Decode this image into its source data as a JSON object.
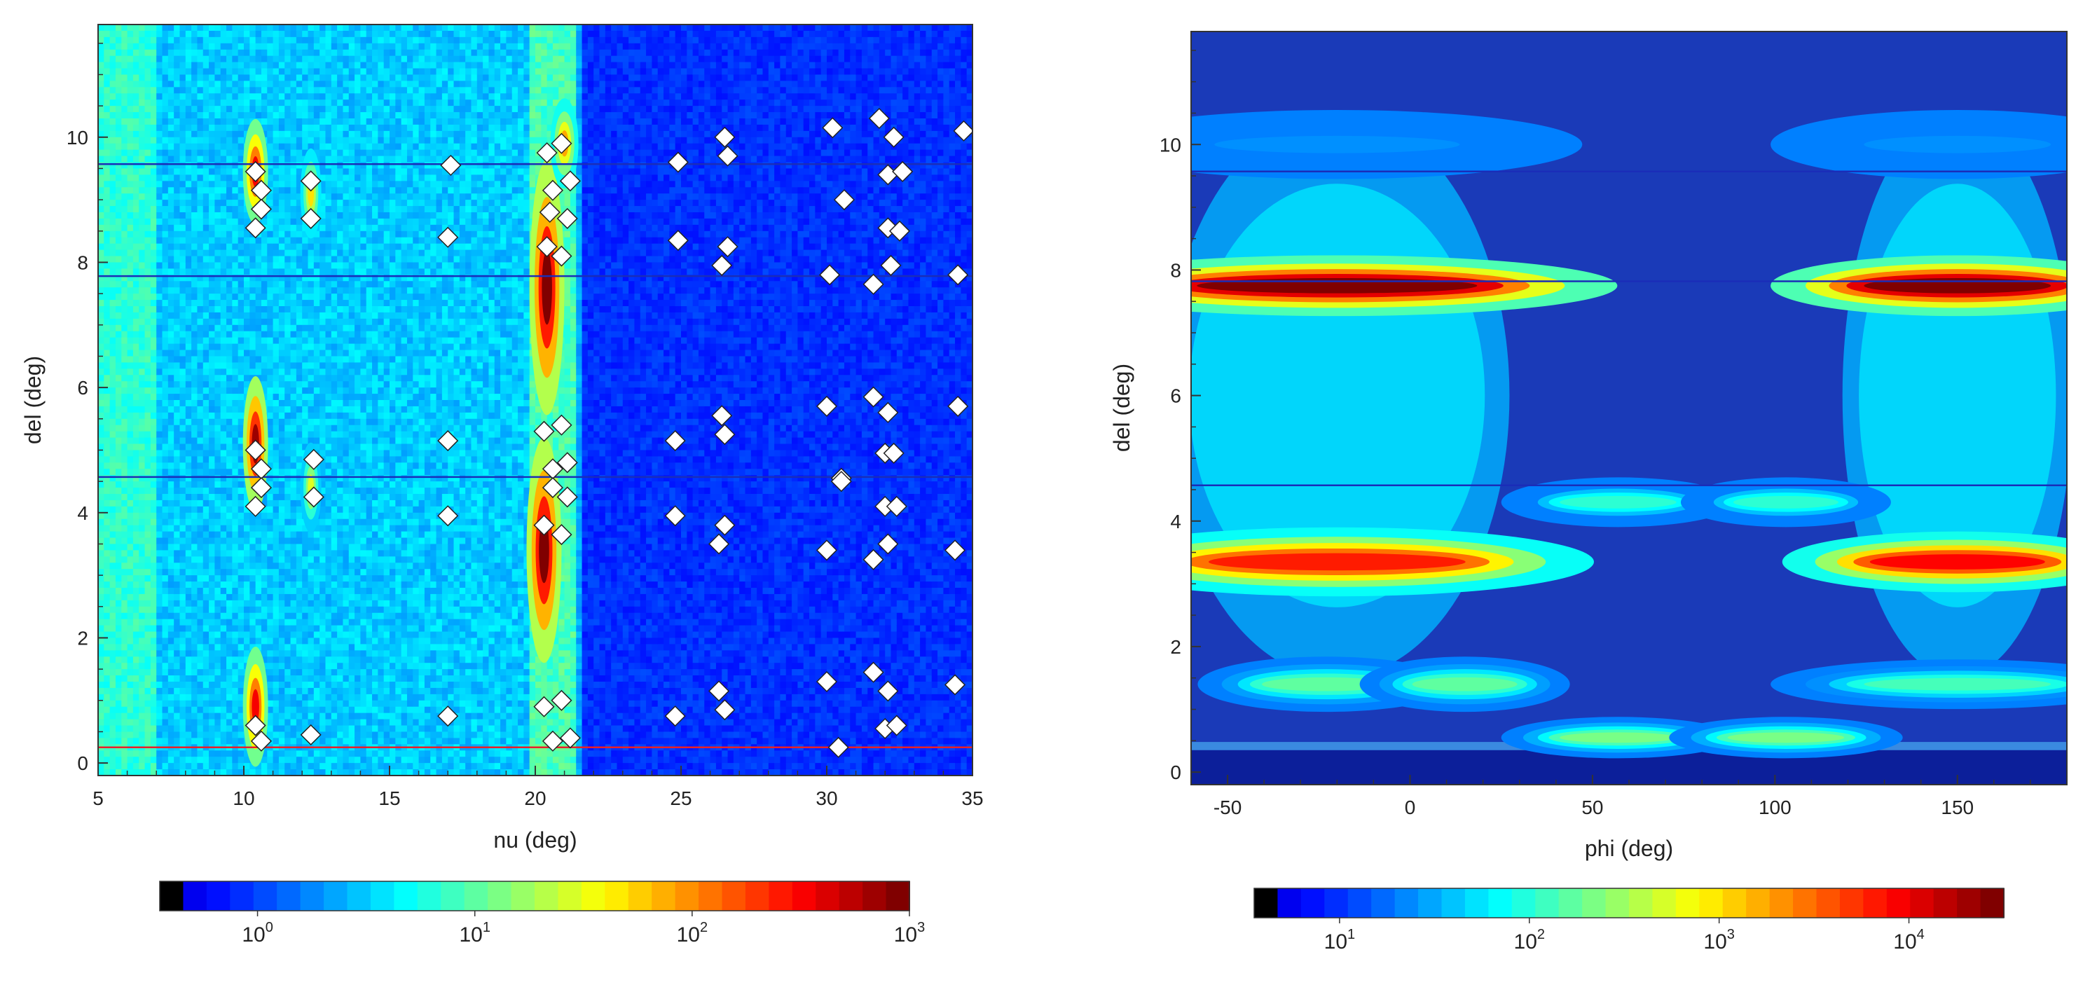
{
  "chart_data": [
    {
      "type": "heatmap",
      "title": "",
      "xlabel": "nu (deg)",
      "ylabel": "del (deg)",
      "xlim": [
        5,
        35
      ],
      "ylim": [
        -0.2,
        11.8
      ],
      "x_ticks": [
        "5",
        "10",
        "15",
        "20",
        "25",
        "30",
        "35"
      ],
      "y_ticks": [
        "0",
        "2",
        "4",
        "6",
        "8",
        "10"
      ],
      "colorbar": {
        "scale": "log",
        "min_exponent": -0.45,
        "max_exponent": 3,
        "tick_labels": [
          {
            "base": "10",
            "exp": "0",
            "value": 0
          },
          {
            "base": "10",
            "exp": "1",
            "value": 1
          },
          {
            "base": "10",
            "exp": "2",
            "value": 2
          },
          {
            "base": "10",
            "exp": "3",
            "value": 3
          }
        ]
      },
      "horizontal_lines": [
        {
          "y": 9.57,
          "color": "#1a2db8"
        },
        {
          "y": 7.78,
          "color": "#1a2db8"
        },
        {
          "y": 4.57,
          "color": "#1a2db8"
        },
        {
          "y": 0.25,
          "color": "#e8202a"
        }
      ],
      "background": {
        "left_region_nu_max": 21.5,
        "left_color": "#3b9ae8",
        "right_color": "#1e3fc8"
      },
      "hot_spots": [
        {
          "nu": 10.4,
          "del": 9.45,
          "intensity": 2.6,
          "nu_width": 0.18,
          "del_width": 0.35
        },
        {
          "nu": 10.4,
          "del": 5.1,
          "intensity": 2.9,
          "nu_width": 0.18,
          "del_width": 0.45
        },
        {
          "nu": 10.4,
          "del": 0.9,
          "intensity": 2.6,
          "nu_width": 0.18,
          "del_width": 0.4
        },
        {
          "nu": 20.4,
          "del": 7.6,
          "intensity": 3.0,
          "nu_width": 0.25,
          "del_width": 0.85
        },
        {
          "nu": 20.3,
          "del": 3.4,
          "intensity": 3.0,
          "nu_width": 0.25,
          "del_width": 0.75
        },
        {
          "nu": 21.0,
          "del": 9.9,
          "intensity": 2.0,
          "nu_width": 0.2,
          "del_width": 0.3
        },
        {
          "nu": 12.3,
          "del": 9.1,
          "intensity": 1.8,
          "nu_width": 0.15,
          "del_width": 0.3
        },
        {
          "nu": 12.3,
          "del": 4.4,
          "intensity": 1.6,
          "nu_width": 0.15,
          "del_width": 0.3
        }
      ],
      "markers": [
        [
          10.4,
          9.45
        ],
        [
          10.6,
          9.15
        ],
        [
          10.6,
          8.85
        ],
        [
          10.4,
          8.55
        ],
        [
          12.3,
          9.3
        ],
        [
          12.3,
          8.7
        ],
        [
          17.1,
          9.55
        ],
        [
          17.0,
          8.4
        ],
        [
          20.4,
          9.75
        ],
        [
          20.9,
          9.9
        ],
        [
          21.2,
          9.3
        ],
        [
          20.6,
          9.15
        ],
        [
          20.5,
          8.8
        ],
        [
          21.1,
          8.7
        ],
        [
          20.4,
          8.25
        ],
        [
          20.9,
          8.1
        ],
        [
          24.9,
          9.6
        ],
        [
          24.9,
          8.35
        ],
        [
          26.5,
          10.0
        ],
        [
          26.6,
          9.7
        ],
        [
          26.6,
          8.25
        ],
        [
          26.4,
          7.95
        ],
        [
          30.2,
          10.15
        ],
        [
          31.8,
          10.3
        ],
        [
          32.3,
          10.0
        ],
        [
          34.7,
          10.1
        ],
        [
          30.6,
          9.0
        ],
        [
          32.1,
          9.4
        ],
        [
          32.6,
          9.45
        ],
        [
          32.1,
          8.55
        ],
        [
          32.5,
          8.5
        ],
        [
          32.2,
          7.95
        ],
        [
          31.6,
          7.65
        ],
        [
          30.1,
          7.8
        ],
        [
          34.5,
          7.8
        ],
        [
          10.4,
          5.0
        ],
        [
          10.6,
          4.7
        ],
        [
          10.6,
          4.4
        ],
        [
          10.4,
          4.1
        ],
        [
          12.4,
          4.85
        ],
        [
          12.4,
          4.25
        ],
        [
          17.0,
          5.15
        ],
        [
          17.0,
          3.95
        ],
        [
          20.3,
          5.3
        ],
        [
          20.9,
          5.4
        ],
        [
          20.6,
          4.7
        ],
        [
          21.1,
          4.8
        ],
        [
          20.6,
          4.4
        ],
        [
          21.1,
          4.25
        ],
        [
          20.3,
          3.8
        ],
        [
          20.9,
          3.65
        ],
        [
          24.8,
          5.15
        ],
        [
          24.8,
          3.95
        ],
        [
          26.4,
          5.55
        ],
        [
          26.5,
          5.25
        ],
        [
          26.5,
          3.8
        ],
        [
          26.3,
          3.5
        ],
        [
          30.0,
          5.7
        ],
        [
          31.6,
          5.85
        ],
        [
          32.1,
          5.6
        ],
        [
          34.5,
          5.7
        ],
        [
          30.5,
          4.55
        ],
        [
          30.5,
          4.5
        ],
        [
          32.0,
          4.95
        ],
        [
          32.3,
          4.95
        ],
        [
          32.0,
          4.1
        ],
        [
          32.4,
          4.1
        ],
        [
          32.1,
          3.5
        ],
        [
          31.6,
          3.25
        ],
        [
          30.0,
          3.4
        ],
        [
          34.4,
          3.4
        ],
        [
          10.4,
          0.6
        ],
        [
          10.6,
          0.35
        ],
        [
          12.3,
          0.45
        ],
        [
          17.0,
          0.75
        ],
        [
          20.3,
          0.9
        ],
        [
          20.9,
          1.0
        ],
        [
          20.6,
          0.35
        ],
        [
          21.2,
          0.4
        ],
        [
          24.8,
          0.75
        ],
        [
          26.3,
          1.15
        ],
        [
          26.5,
          0.85
        ],
        [
          30.0,
          1.3
        ],
        [
          31.6,
          1.45
        ],
        [
          32.1,
          1.15
        ],
        [
          32.0,
          0.55
        ],
        [
          32.4,
          0.6
        ],
        [
          30.4,
          0.25
        ],
        [
          34.4,
          1.25
        ]
      ]
    },
    {
      "type": "heatmap",
      "title": "",
      "xlabel": "phi (deg)",
      "ylabel": "del (deg)",
      "xlim": [
        -60,
        180
      ],
      "ylim": [
        -0.2,
        11.8
      ],
      "x_ticks": [
        "-50",
        "0",
        "50",
        "100",
        "150"
      ],
      "y_ticks": [
        "0",
        "2",
        "4",
        "6",
        "8",
        "10"
      ],
      "colorbar": {
        "scale": "log",
        "min_exponent": 0.55,
        "max_exponent": 4.5,
        "tick_labels": [
          {
            "base": "10",
            "exp": "1",
            "value": 1
          },
          {
            "base": "10",
            "exp": "2",
            "value": 2
          },
          {
            "base": "10",
            "exp": "3",
            "value": 3
          },
          {
            "base": "10",
            "exp": "4",
            "value": 4
          }
        ]
      },
      "horizontal_lines": [
        {
          "y": 9.57,
          "color": "#1a2db8"
        },
        {
          "y": 7.82,
          "color": "#1a2db8"
        },
        {
          "y": 4.57,
          "color": "#1a2db8"
        }
      ],
      "background_color": "#1a3ab8",
      "bottom_band": {
        "del_max": 0.35,
        "color": "#0c1f9a"
      },
      "blobs": [
        {
          "phi": -20,
          "del": 7.75,
          "phi_half": 48,
          "del_half": 0.22,
          "intensity": 4.5
        },
        {
          "phi": 150,
          "del": 7.75,
          "phi_half": 32,
          "del_half": 0.22,
          "intensity": 4.5
        },
        {
          "phi": -20,
          "del": 3.35,
          "phi_half": 44,
          "del_half": 0.25,
          "intensity": 3.9
        },
        {
          "phi": 150,
          "del": 3.35,
          "phi_half": 30,
          "del_half": 0.22,
          "intensity": 4.0
        },
        {
          "phi": -23,
          "del": 1.4,
          "phi_half": 22,
          "del_half": 0.2,
          "intensity": 2.4
        },
        {
          "phi": 15,
          "del": 1.4,
          "phi_half": 18,
          "del_half": 0.2,
          "intensity": 2.4
        },
        {
          "phi": 150,
          "del": 1.4,
          "phi_half": 32,
          "del_half": 0.18,
          "intensity": 2.3
        },
        {
          "phi": 57,
          "del": 4.3,
          "phi_half": 20,
          "del_half": 0.18,
          "intensity": 2.2
        },
        {
          "phi": 103,
          "del": 4.3,
          "phi_half": 18,
          "del_half": 0.18,
          "intensity": 2.2
        },
        {
          "phi": 57,
          "del": 0.55,
          "phi_half": 20,
          "del_half": 0.15,
          "intensity": 2.5
        },
        {
          "phi": 103,
          "del": 0.55,
          "phi_half": 20,
          "del_half": 0.15,
          "intensity": 2.5
        },
        {
          "phi": -20,
          "del": 10.0,
          "phi_half": 42,
          "del_half": 0.25,
          "intensity": 1.6
        },
        {
          "phi": 150,
          "del": 10.0,
          "phi_half": 32,
          "del_half": 0.25,
          "intensity": 1.6
        }
      ],
      "halos": [
        {
          "phi": -20,
          "del_center": 6.0,
          "phi_half": 45,
          "del_half": 4.5,
          "intensity": 1.5
        },
        {
          "phi": 150,
          "del_center": 6.0,
          "phi_half": 30,
          "del_half": 4.5,
          "intensity": 1.5
        }
      ]
    }
  ]
}
